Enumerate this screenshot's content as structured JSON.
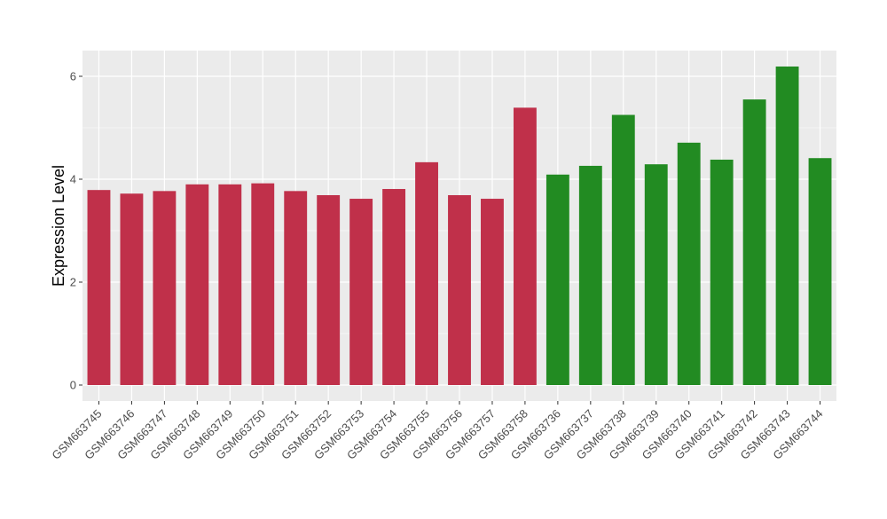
{
  "chart_data": {
    "type": "bar",
    "ylabel": "Expression Level",
    "xlabel": "",
    "ylim": [
      -0.3,
      6.5
    ],
    "yticks": [
      0,
      2,
      4,
      6
    ],
    "grid": true,
    "legend": "none",
    "colors": {
      "group_a": "#C0304A",
      "group_b": "#228B22",
      "panel_bg": "#EBEBEB",
      "grid": "#FFFFFF"
    },
    "categories": [
      "GSM663745",
      "GSM663746",
      "GSM663747",
      "GSM663748",
      "GSM663749",
      "GSM663750",
      "GSM663751",
      "GSM663752",
      "GSM663753",
      "GSM663754",
      "GSM663755",
      "GSM663756",
      "GSM663757",
      "GSM663758",
      "GSM663736",
      "GSM663737",
      "GSM663738",
      "GSM663739",
      "GSM663740",
      "GSM663741",
      "GSM663742",
      "GSM663743",
      "GSM663744"
    ],
    "values": [
      3.79,
      3.72,
      3.77,
      3.9,
      3.9,
      3.92,
      3.77,
      3.69,
      3.62,
      3.81,
      4.33,
      3.69,
      3.62,
      5.39,
      4.09,
      4.26,
      5.25,
      4.29,
      4.71,
      4.38,
      5.55,
      6.19,
      4.41
    ],
    "groups": [
      "a",
      "a",
      "a",
      "a",
      "a",
      "a",
      "a",
      "a",
      "a",
      "a",
      "a",
      "a",
      "a",
      "a",
      "b",
      "b",
      "b",
      "b",
      "b",
      "b",
      "b",
      "b",
      "b"
    ]
  }
}
